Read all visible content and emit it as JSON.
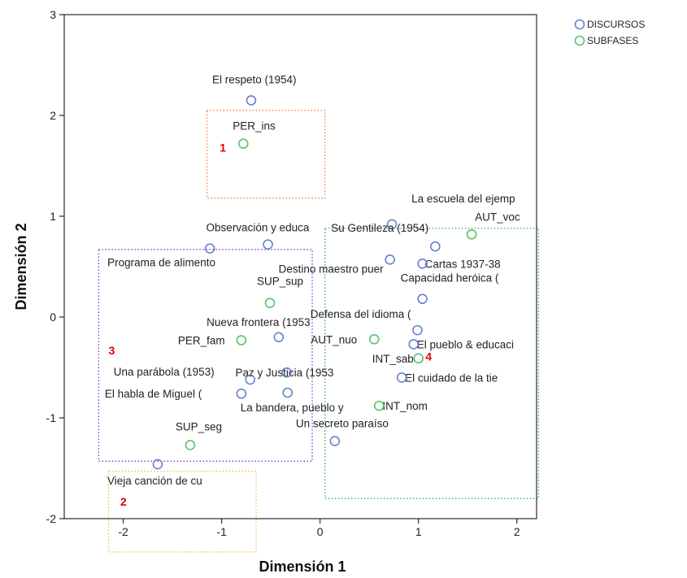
{
  "chart_data": {
    "type": "scatter",
    "xlabel": "Dimensión 1",
    "ylabel": "Dimensión 2",
    "xlim": [
      -2.6,
      2.2
    ],
    "ylim": [
      -2,
      3
    ],
    "xticks": [
      "-2",
      "-1",
      "0",
      "1",
      "2"
    ],
    "yticks": [
      "-2",
      "-1",
      "0",
      "1",
      "2",
      "3"
    ],
    "xtick_values": [
      -2,
      -1,
      0,
      1,
      2
    ],
    "ytick_values": [
      -2,
      -1,
      0,
      1,
      2,
      3
    ],
    "legend": {
      "position": "top-right"
    },
    "series": [
      {
        "name": "DISCURSOS",
        "color": "#6b7fd1",
        "points": [
          {
            "label": "El respeto (1954)",
            "x": -0.7,
            "y": 2.15
          },
          {
            "label": "La escuela del ejemp",
            "x": 0.73,
            "y": 0.92
          },
          {
            "label": "Observación y educa",
            "x": -0.53,
            "y": 0.72
          },
          {
            "label": "Programa de alimento",
            "x": -1.12,
            "y": 0.68
          },
          {
            "label": "Su Gentileza (1954)",
            "x": 1.17,
            "y": 0.7
          },
          {
            "label": "Destino maestro puer",
            "x": 0.71,
            "y": 0.57
          },
          {
            "label": "Cartas 1937-38",
            "x": 1.04,
            "y": 0.53
          },
          {
            "label": "Capacidad heróica (",
            "x": 1.04,
            "y": 0.18
          },
          {
            "label": "Defensa del idioma (",
            "x": 0.99,
            "y": -0.13
          },
          {
            "label": "El pueblo & educaci",
            "x": 0.95,
            "y": -0.27
          },
          {
            "label": "Nueva frontera (1953",
            "x": -0.42,
            "y": -0.2
          },
          {
            "label": "Paz y Justicia (1953",
            "x": -0.34,
            "y": -0.55
          },
          {
            "label": "Una parábola (1953)",
            "x": -0.71,
            "y": -0.62
          },
          {
            "label": "El habla de Miguel (",
            "x": -0.8,
            "y": -0.76
          },
          {
            "label": "La bandera, pueblo y",
            "x": -0.33,
            "y": -0.75
          },
          {
            "label": "El cuidado de la tie",
            "x": 0.83,
            "y": -0.6
          },
          {
            "label": "Un secreto paraíso",
            "x": 0.15,
            "y": -1.23
          },
          {
            "label": "Vieja canción de cu",
            "x": -1.65,
            "y": -1.46
          }
        ]
      },
      {
        "name": "SUBFASES",
        "color": "#55c46a",
        "points": [
          {
            "label": "PER_ins",
            "x": -0.78,
            "y": 1.72
          },
          {
            "label": "AUT_voc",
            "x": 1.54,
            "y": 0.82
          },
          {
            "label": "SUP_sup",
            "x": -0.51,
            "y": 0.14
          },
          {
            "label": "PER_fam",
            "x": -0.8,
            "y": -0.23
          },
          {
            "label": "AUT_nuo",
            "x": 0.55,
            "y": -0.22
          },
          {
            "label": "INT_sab",
            "x": 1.0,
            "y": -0.41
          },
          {
            "label": "INT_nom",
            "x": 0.6,
            "y": -0.88
          },
          {
            "label": "SUP_seg",
            "x": -1.32,
            "y": -1.27
          }
        ]
      }
    ],
    "regions": [
      {
        "label": "1",
        "color": "#f08040",
        "x0": -1.15,
        "x1": 0.05,
        "y0": 1.18,
        "y1": 2.05,
        "label_x": -1.02,
        "label_y": 1.68
      },
      {
        "label": "2",
        "color": "#f5b840",
        "x0": -2.15,
        "x1": -0.65,
        "y0": -1.53,
        "y1": -2.33,
        "label_x": -2.03,
        "label_y": -1.83
      },
      {
        "label": "3",
        "color": "#7040c0",
        "x0": -2.25,
        "x1": -0.08,
        "y0": 0.67,
        "y1": -1.43,
        "label_x": -2.15,
        "label_y": -0.33
      },
      {
        "label": "4",
        "color": "#30b050",
        "x0": 0.05,
        "x1": 2.22,
        "y0": 0.88,
        "y1": -1.8,
        "label_x": 1.07,
        "label_y": -0.39
      }
    ]
  }
}
